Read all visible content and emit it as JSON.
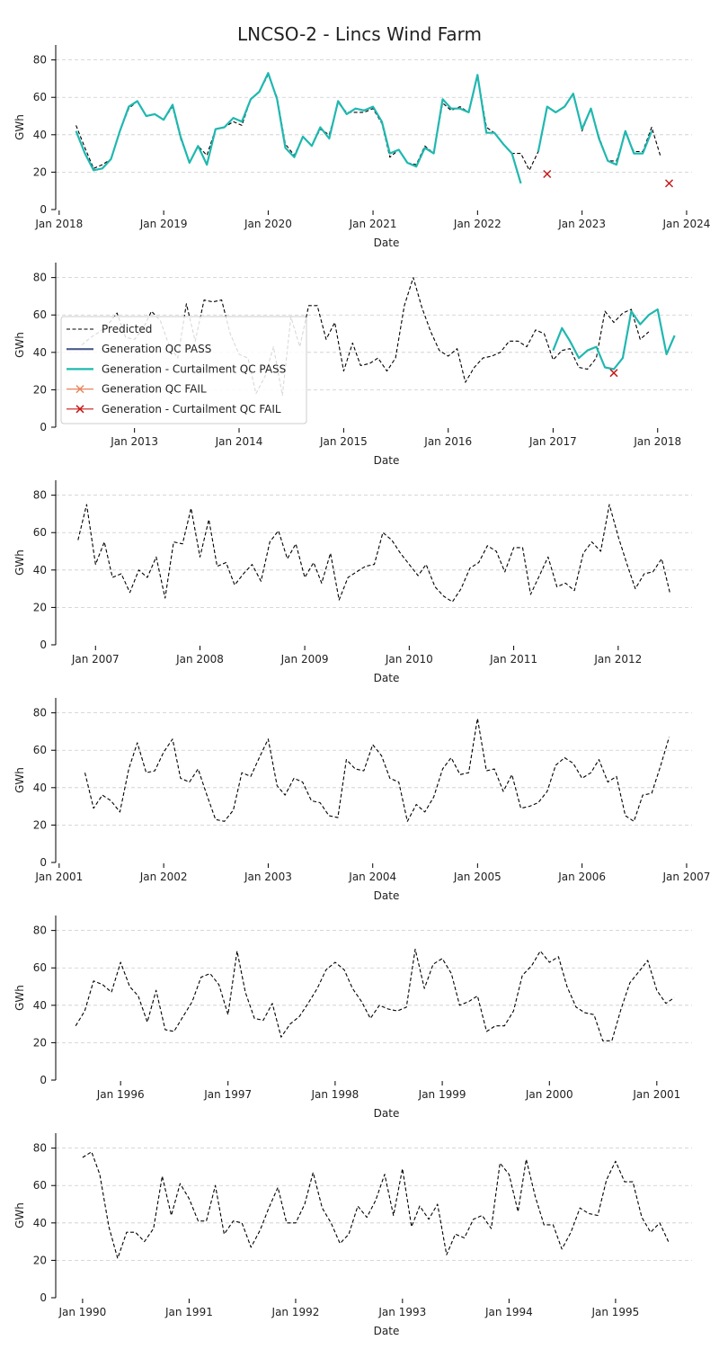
{
  "title": "LNCSO-2 - Lincs Wind Farm",
  "colors": {
    "predicted": "#000000",
    "gen_pass": "#4c5a8c",
    "curt_pass": "#1fb8b0",
    "gen_fail": "#e8865a",
    "curt_fail": "#c71a1a"
  },
  "legend": {
    "items": [
      {
        "label": "Predicted",
        "key": "predicted",
        "style": "dashed"
      },
      {
        "label": "Generation QC PASS",
        "key": "gen_pass",
        "style": "solid"
      },
      {
        "label": "Generation - Curtailment QC PASS",
        "key": "curt_pass",
        "style": "solid"
      },
      {
        "label": "Generation QC FAIL",
        "key": "gen_fail",
        "style": "x"
      },
      {
        "label": "Generation - Curtailment QC FAIL",
        "key": "curt_fail",
        "style": "x"
      }
    ]
  },
  "chart_data": [
    {
      "type": "line",
      "xlabel": "Date",
      "ylabel": "GWh",
      "xlim": [
        "2017-12-20",
        "2024-01-20"
      ],
      "ylim": [
        0,
        88
      ],
      "yticks": [
        0,
        20,
        40,
        60,
        80
      ],
      "xticks": [
        {
          "label": "Jan 2018",
          "date": "2018-01-01"
        },
        {
          "label": "Jan 2019",
          "date": "2019-01-01"
        },
        {
          "label": "Jan 2020",
          "date": "2020-01-01"
        },
        {
          "label": "Jan 2021",
          "date": "2021-01-01"
        },
        {
          "label": "Jan 2022",
          "date": "2022-01-01"
        },
        {
          "label": "Jan 2023",
          "date": "2023-01-01"
        },
        {
          "label": "Jan 2024",
          "date": "2024-01-01"
        }
      ],
      "grid": "y",
      "series": [
        {
          "key": "predicted",
          "start": "2018-03",
          "values": [
            45,
            33,
            22,
            24,
            27,
            42,
            54,
            58,
            50,
            51,
            48,
            55,
            38,
            25,
            34,
            29,
            43,
            44,
            47,
            45,
            59,
            63,
            72,
            60,
            35,
            29,
            39,
            34,
            43,
            40,
            57,
            52,
            52,
            52,
            54,
            46,
            28,
            32,
            25,
            24,
            34,
            30,
            57,
            53,
            55,
            52,
            72,
            44,
            41,
            35,
            30,
            30,
            21,
            31,
            55,
            52,
            55,
            62,
            42,
            54,
            39,
            26,
            26,
            41,
            31,
            31,
            44,
            29
          ]
        },
        {
          "key": "curt_pass",
          "start": "2018-03",
          "values": [
            42,
            30,
            21,
            22,
            27,
            42,
            55,
            58,
            50,
            51,
            48,
            56,
            39,
            25,
            34,
            24,
            43,
            44,
            49,
            47,
            59,
            63,
            73,
            59,
            33,
            28,
            39,
            34,
            44,
            38,
            58,
            51,
            54,
            53,
            55,
            47,
            30,
            32,
            25,
            23,
            33,
            30,
            59,
            54,
            54,
            52,
            72,
            41,
            41,
            35,
            30,
            14,
            null,
            31,
            55,
            52,
            55,
            62,
            43,
            54,
            38,
            26,
            24,
            42,
            30,
            30,
            42,
            null
          ]
        },
        {
          "key": "curt_fail",
          "points": [
            {
              "x": "2022-09",
              "y": 19
            },
            {
              "x": "2023-11",
              "y": 14
            }
          ]
        }
      ]
    },
    {
      "type": "line",
      "xlabel": "Date",
      "ylabel": "GWh",
      "xlim": [
        "2012-04-01",
        "2018-05-01"
      ],
      "ylim": [
        0,
        88
      ],
      "yticks": [
        0,
        20,
        40,
        60,
        80
      ],
      "xticks": [
        {
          "label": "Jan 2013",
          "date": "2013-01-01"
        },
        {
          "label": "Jan 2014",
          "date": "2014-01-01"
        },
        {
          "label": "Jan 2015",
          "date": "2015-01-01"
        },
        {
          "label": "Jan 2016",
          "date": "2016-01-01"
        },
        {
          "label": "Jan 2017",
          "date": "2017-01-01"
        },
        {
          "label": "Jan 2018",
          "date": "2018-01-01"
        }
      ],
      "grid": "y",
      "legend_position": "center-left",
      "series": [
        {
          "key": "predicted",
          "start": "2012-07",
          "values": [
            44,
            48,
            51,
            55,
            61,
            48,
            47,
            53,
            62,
            57,
            44,
            37,
            66,
            46,
            68,
            67,
            68,
            50,
            39,
            37,
            18,
            27,
            43,
            17,
            59,
            43,
            65,
            65,
            47,
            56,
            30,
            45,
            33,
            34,
            37,
            30,
            37,
            65,
            80,
            64,
            51,
            41,
            38,
            42,
            24,
            32,
            37,
            38,
            40,
            46,
            46,
            43,
            52,
            50,
            36,
            41,
            42,
            32,
            31,
            37,
            62,
            56,
            61,
            63,
            47,
            51
          ]
        },
        {
          "key": "curt_pass",
          "start": "2017-01",
          "values": [
            41,
            53,
            46,
            37,
            41,
            43,
            32,
            31,
            37,
            62,
            55,
            60,
            63,
            39,
            49
          ]
        },
        {
          "key": "curt_fail",
          "points": [
            {
              "x": "2017-08",
              "y": 29
            }
          ]
        }
      ]
    },
    {
      "type": "line",
      "xlabel": "Date",
      "ylabel": "GWh",
      "xlim": [
        "2006-08-15",
        "2012-09-15"
      ],
      "ylim": [
        0,
        88
      ],
      "yticks": [
        0,
        20,
        40,
        60,
        80
      ],
      "xticks": [
        {
          "label": "Jan 2007",
          "date": "2007-01-01"
        },
        {
          "label": "Jan 2008",
          "date": "2008-01-01"
        },
        {
          "label": "Jan 2009",
          "date": "2009-01-01"
        },
        {
          "label": "Jan 2010",
          "date": "2010-01-01"
        },
        {
          "label": "Jan 2011",
          "date": "2011-01-01"
        },
        {
          "label": "Jan 2012",
          "date": "2012-01-01"
        }
      ],
      "grid": "y",
      "series": [
        {
          "key": "predicted",
          "start": "2006-11",
          "values": [
            56,
            75,
            43,
            55,
            36,
            38,
            28,
            40,
            36,
            47,
            25,
            55,
            54,
            73,
            47,
            67,
            42,
            44,
            32,
            38,
            43,
            34,
            55,
            61,
            46,
            54,
            36,
            44,
            33,
            49,
            24,
            36,
            39,
            42,
            43,
            60,
            56,
            49,
            43,
            37,
            43,
            31,
            26,
            23,
            30,
            41,
            44,
            53,
            50,
            39,
            52,
            52,
            27,
            37,
            47,
            31,
            33,
            29,
            49,
            55,
            50,
            75,
            58,
            43,
            30,
            38,
            39,
            46,
            27
          ]
        }
      ]
    },
    {
      "type": "line",
      "xlabel": "Date",
      "ylabel": "GWh",
      "xlim": [
        "2000-12-20",
        "2007-01-20"
      ],
      "ylim": [
        0,
        88
      ],
      "yticks": [
        0,
        20,
        40,
        60,
        80
      ],
      "xticks": [
        {
          "label": "Jan 2001",
          "date": "2001-01-01"
        },
        {
          "label": "Jan 2002",
          "date": "2002-01-01"
        },
        {
          "label": "Jan 2003",
          "date": "2003-01-01"
        },
        {
          "label": "Jan 2004",
          "date": "2004-01-01"
        },
        {
          "label": "Jan 2005",
          "date": "2005-01-01"
        },
        {
          "label": "Jan 2006",
          "date": "2006-01-01"
        },
        {
          "label": "Jan 2007",
          "date": "2007-01-01"
        }
      ],
      "grid": "y",
      "series": [
        {
          "key": "predicted",
          "start": "2001-04",
          "values": [
            48,
            29,
            36,
            33,
            27,
            50,
            64,
            48,
            49,
            59,
            66,
            45,
            43,
            50,
            36,
            23,
            22,
            28,
            48,
            46,
            56,
            66,
            41,
            36,
            45,
            43,
            33,
            32,
            25,
            24,
            55,
            50,
            49,
            63,
            57,
            45,
            43,
            22,
            31,
            27,
            35,
            50,
            56,
            47,
            48,
            77,
            49,
            50,
            38,
            47,
            29,
            30,
            32,
            38,
            52,
            56,
            53,
            45,
            48,
            55,
            43,
            46,
            25,
            22,
            36,
            37,
            51,
            67
          ]
        }
      ]
    },
    {
      "type": "line",
      "xlabel": "Date",
      "ylabel": "GWh",
      "xlim": [
        "1995-05-25",
        "2001-05-01"
      ],
      "ylim": [
        0,
        88
      ],
      "yticks": [
        0,
        20,
        40,
        60,
        80
      ],
      "xticks": [
        {
          "label": "Jan 1996",
          "date": "1996-01-01"
        },
        {
          "label": "Jan 1997",
          "date": "1997-01-01"
        },
        {
          "label": "Jan 1998",
          "date": "1998-01-01"
        },
        {
          "label": "Jan 1999",
          "date": "1999-01-01"
        },
        {
          "label": "Jan 2000",
          "date": "2000-01-01"
        },
        {
          "label": "Jan 2001",
          "date": "2001-01-01"
        }
      ],
      "grid": "y",
      "series": [
        {
          "key": "predicted",
          "start": "1995-08",
          "values": [
            29,
            37,
            53,
            51,
            47,
            63,
            50,
            45,
            31,
            48,
            27,
            26,
            34,
            42,
            55,
            57,
            51,
            35,
            69,
            47,
            33,
            32,
            41,
            23,
            30,
            34,
            41,
            49,
            59,
            63,
            59,
            49,
            42,
            33,
            40,
            38,
            37,
            39,
            70,
            49,
            62,
            65,
            57,
            40,
            42,
            45,
            26,
            29,
            29,
            37,
            56,
            61,
            69,
            63,
            66,
            50,
            39,
            36,
            35,
            21,
            21,
            38,
            52,
            58,
            64,
            48,
            41,
            44
          ]
        }
      ]
    },
    {
      "type": "line",
      "xlabel": "Date",
      "ylabel": "GWh",
      "xlim": [
        "1989-10-01",
        "1995-09-20"
      ],
      "ylim": [
        0,
        88
      ],
      "yticks": [
        0,
        20,
        40,
        60,
        80
      ],
      "xticks": [
        {
          "label": "Jan 1990",
          "date": "1990-01-01"
        },
        {
          "label": "Jan 1991",
          "date": "1991-01-01"
        },
        {
          "label": "Jan 1992",
          "date": "1992-01-01"
        },
        {
          "label": "Jan 1993",
          "date": "1993-01-01"
        },
        {
          "label": "Jan 1994",
          "date": "1994-01-01"
        },
        {
          "label": "Jan 1995",
          "date": "1995-01-01"
        }
      ],
      "grid": "y",
      "series": [
        {
          "key": "predicted",
          "start": "1990-01",
          "values": [
            75,
            78,
            66,
            38,
            21,
            35,
            35,
            30,
            37,
            65,
            44,
            61,
            53,
            41,
            41,
            60,
            34,
            41,
            40,
            27,
            36,
            48,
            59,
            40,
            40,
            50,
            67,
            48,
            40,
            29,
            34,
            49,
            43,
            52,
            66,
            44,
            69,
            38,
            49,
            42,
            50,
            23,
            34,
            32,
            42,
            44,
            37,
            72,
            66,
            46,
            74,
            54,
            39,
            39,
            26,
            35,
            48,
            45,
            44,
            63,
            73,
            62,
            62,
            43,
            35,
            40,
            30
          ]
        }
      ]
    }
  ]
}
